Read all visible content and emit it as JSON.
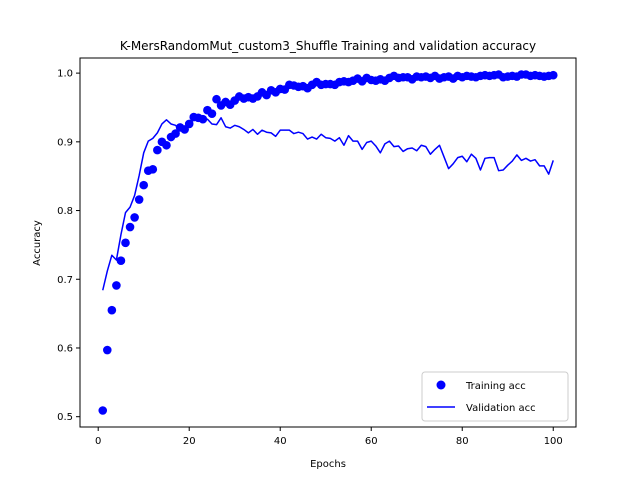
{
  "chart_data": {
    "type": "line",
    "title": "K-MersRandomMut_custom3_Shuffle Training and validation accuracy",
    "xlabel": "Epochs",
    "ylabel": "Accuracy",
    "xlim": [
      -4,
      105
    ],
    "ylim": [
      0.485,
      1.022
    ],
    "x_ticks": [
      0,
      20,
      40,
      60,
      80,
      100
    ],
    "x_tick_labels": [
      "0",
      "20",
      "40",
      "60",
      "80",
      "100"
    ],
    "y_ticks": [
      0.5,
      0.6,
      0.7,
      0.8,
      0.9,
      1.0
    ],
    "y_tick_labels": [
      "0.5",
      "0.6",
      "0.7",
      "0.8",
      "0.9",
      "1.0"
    ],
    "grid": false,
    "legend_position": "bottom-right",
    "series": [
      {
        "name": "Training acc",
        "style": "markers",
        "color": "#0000ff",
        "x": [
          1,
          2,
          3,
          4,
          5,
          6,
          7,
          8,
          9,
          10,
          11,
          12,
          13,
          14,
          15,
          16,
          17,
          18,
          19,
          20,
          21,
          22,
          23,
          24,
          25,
          26,
          27,
          28,
          29,
          30,
          31,
          32,
          33,
          34,
          35,
          36,
          37,
          38,
          39,
          40,
          41,
          42,
          43,
          44,
          45,
          46,
          47,
          48,
          49,
          50,
          51,
          52,
          53,
          54,
          55,
          56,
          57,
          58,
          59,
          60,
          61,
          62,
          63,
          64,
          65,
          66,
          67,
          68,
          69,
          70,
          71,
          72,
          73,
          74,
          75,
          76,
          77,
          78,
          79,
          80,
          81,
          82,
          83,
          84,
          85,
          86,
          87,
          88,
          89,
          90,
          91,
          92,
          93,
          94,
          95,
          96,
          97,
          98,
          99,
          100
        ],
        "y": [
          0.509,
          0.597,
          0.655,
          0.691,
          0.727,
          0.753,
          0.776,
          0.79,
          0.816,
          0.837,
          0.858,
          0.86,
          0.888,
          0.9,
          0.895,
          0.907,
          0.912,
          0.921,
          0.918,
          0.926,
          0.936,
          0.935,
          0.933,
          0.946,
          0.941,
          0.962,
          0.953,
          0.958,
          0.954,
          0.96,
          0.966,
          0.963,
          0.965,
          0.963,
          0.966,
          0.972,
          0.968,
          0.975,
          0.972,
          0.977,
          0.976,
          0.983,
          0.982,
          0.98,
          0.981,
          0.978,
          0.983,
          0.987,
          0.983,
          0.984,
          0.984,
          0.983,
          0.987,
          0.988,
          0.987,
          0.989,
          0.992,
          0.988,
          0.993,
          0.99,
          0.989,
          0.991,
          0.989,
          0.993,
          0.996,
          0.993,
          0.994,
          0.994,
          0.991,
          0.995,
          0.994,
          0.995,
          0.993,
          0.996,
          0.992,
          0.994,
          0.995,
          0.992,
          0.996,
          0.994,
          0.996,
          0.995,
          0.994,
          0.996,
          0.997,
          0.996,
          0.997,
          0.998,
          0.994,
          0.995,
          0.996,
          0.995,
          0.998,
          0.998,
          0.996,
          0.997,
          0.996,
          0.995,
          0.996,
          0.997
        ]
      },
      {
        "name": "Validation acc",
        "style": "line",
        "color": "#0000ff",
        "x": [
          1,
          2,
          3,
          4,
          5,
          6,
          7,
          8,
          9,
          10,
          11,
          12,
          13,
          14,
          15,
          16,
          17,
          18,
          19,
          20,
          21,
          22,
          23,
          24,
          25,
          26,
          27,
          28,
          29,
          30,
          31,
          32,
          33,
          34,
          35,
          36,
          37,
          38,
          39,
          40,
          41,
          42,
          43,
          44,
          45,
          46,
          47,
          48,
          49,
          50,
          51,
          52,
          53,
          54,
          55,
          56,
          57,
          58,
          59,
          60,
          61,
          62,
          63,
          64,
          65,
          66,
          67,
          68,
          69,
          70,
          71,
          72,
          73,
          74,
          75,
          76,
          77,
          78,
          79,
          80,
          81,
          82,
          83,
          84,
          85,
          86,
          87,
          88,
          89,
          90,
          91,
          92,
          93,
          94,
          95,
          96,
          97,
          98,
          99,
          100
        ],
        "y": [
          0.684,
          0.712,
          0.735,
          0.728,
          0.765,
          0.797,
          0.805,
          0.822,
          0.851,
          0.884,
          0.901,
          0.905,
          0.913,
          0.926,
          0.932,
          0.926,
          0.924,
          0.917,
          0.922,
          0.922,
          0.934,
          0.931,
          0.929,
          0.933,
          0.926,
          0.925,
          0.935,
          0.922,
          0.92,
          0.924,
          0.922,
          0.918,
          0.913,
          0.918,
          0.911,
          0.917,
          0.914,
          0.913,
          0.908,
          0.917,
          0.917,
          0.917,
          0.912,
          0.914,
          0.912,
          0.904,
          0.907,
          0.904,
          0.911,
          0.906,
          0.905,
          0.901,
          0.906,
          0.895,
          0.909,
          0.901,
          0.901,
          0.889,
          0.899,
          0.901,
          0.894,
          0.884,
          0.897,
          0.901,
          0.893,
          0.894,
          0.886,
          0.89,
          0.891,
          0.887,
          0.895,
          0.893,
          0.882,
          0.889,
          0.895,
          0.878,
          0.861,
          0.868,
          0.877,
          0.879,
          0.871,
          0.882,
          0.876,
          0.859,
          0.876,
          0.877,
          0.877,
          0.858,
          0.859,
          0.866,
          0.872,
          0.881,
          0.873,
          0.876,
          0.872,
          0.874,
          0.865,
          0.865,
          0.853,
          0.873
        ]
      }
    ]
  }
}
